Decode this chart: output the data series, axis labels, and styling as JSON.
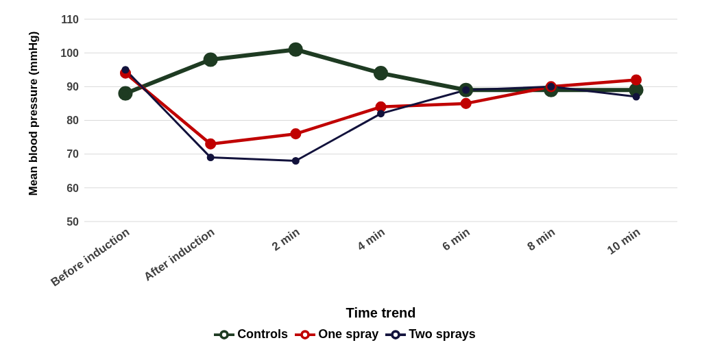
{
  "chart_data": {
    "type": "line",
    "xlabel": "Time trend",
    "ylabel": "Mean blood pressure (mmHg)",
    "categories": [
      "Before induction",
      "After induction",
      "2 min",
      "4 min",
      "6 min",
      "8 min",
      "10 min"
    ],
    "series": [
      {
        "name": "Controls",
        "color": "#1e3b22",
        "values": [
          88,
          98,
          101,
          94,
          89,
          89,
          89
        ]
      },
      {
        "name": "One spray",
        "color": "#c00000",
        "values": [
          94,
          73,
          76,
          84,
          85,
          90,
          92
        ]
      },
      {
        "name": "Two sprays",
        "color": "#12123c",
        "values": [
          95,
          69,
          68,
          82,
          89,
          90,
          87
        ]
      }
    ],
    "ylim": [
      50,
      110
    ],
    "yticks": [
      50,
      60,
      70,
      80,
      90,
      100,
      110
    ],
    "grid": "y",
    "legend": "bottom",
    "marker": "circle",
    "line_style": "solid"
  }
}
